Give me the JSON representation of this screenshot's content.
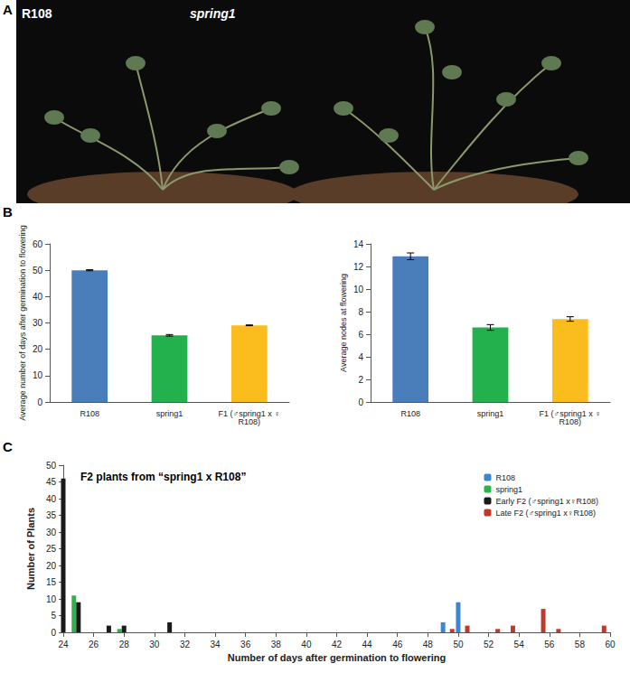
{
  "panel_a": {
    "label": "A",
    "captions": [
      "R108",
      "spring1"
    ]
  },
  "chart_data": [
    {
      "type": "bar",
      "annotations": [
        "B"
      ],
      "categories": [
        "R108",
        "spring1",
        "F1 (♂spring1 x ♀R108)"
      ],
      "values": [
        50,
        25.3,
        29.1
      ],
      "errors": [
        0.2,
        0.3,
        0.15
      ],
      "colors": [
        "#4a7ebb",
        "#22b14c",
        "#fbbc1d"
      ],
      "y_label": "Average number of days after germination to flowering",
      "ylim": [
        0,
        60
      ],
      "yticks": [
        0,
        10,
        20,
        30,
        40,
        50,
        60
      ],
      "grid": false
    },
    {
      "type": "bar",
      "categories": [
        "R108",
        "spring1",
        "F1 (♂spring1 x ♀R108)"
      ],
      "values": [
        12.9,
        6.6,
        7.35
      ],
      "errors": [
        0.3,
        0.25,
        0.2
      ],
      "colors": [
        "#4a7ebb",
        "#22b14c",
        "#fbbc1d"
      ],
      "y_label": "Average nodes at flowering",
      "ylim": [
        0,
        14
      ],
      "yticks": [
        0,
        2,
        4,
        6,
        8,
        10,
        12,
        14
      ],
      "grid": false
    },
    {
      "type": "bar",
      "annotations": [
        "C"
      ],
      "title": "F2 plants from “spring1 x R108”",
      "x_label": "Number of days after germination to flowering",
      "y_label": "Number of Plants",
      "xlim": [
        24,
        60
      ],
      "xticks": [
        24,
        26,
        28,
        30,
        32,
        34,
        36,
        38,
        40,
        42,
        44,
        46,
        48,
        50,
        52,
        54,
        56,
        58,
        60
      ],
      "ylim": [
        0,
        50
      ],
      "yticks": [
        0,
        5,
        10,
        15,
        20,
        25,
        30,
        35,
        40,
        45,
        50
      ],
      "legend": "top-right",
      "grid": false,
      "series": [
        {
          "name": "R108",
          "color": "#3a86d1",
          "x": [
            49,
            50
          ],
          "values": [
            3,
            9
          ]
        },
        {
          "name": "spring1",
          "color": "#2db34a",
          "x": [
            24.7,
            27.7
          ],
          "values": [
            11,
            1
          ]
        },
        {
          "name": "Early F2 (♂spring1 x♀R108)",
          "color": "#1a1a1a",
          "x": [
            24,
            25,
            27,
            28,
            31
          ],
          "values": [
            46,
            9,
            2,
            2,
            3
          ]
        },
        {
          "name": "Late F2 (♂spring1 x♀R108)",
          "color": "#c0392b",
          "x": [
            49.6,
            50.6,
            52.6,
            53.6,
            55.6,
            56.6,
            59.6
          ],
          "values": [
            1,
            2,
            1,
            2,
            7,
            1,
            2
          ]
        }
      ]
    }
  ]
}
